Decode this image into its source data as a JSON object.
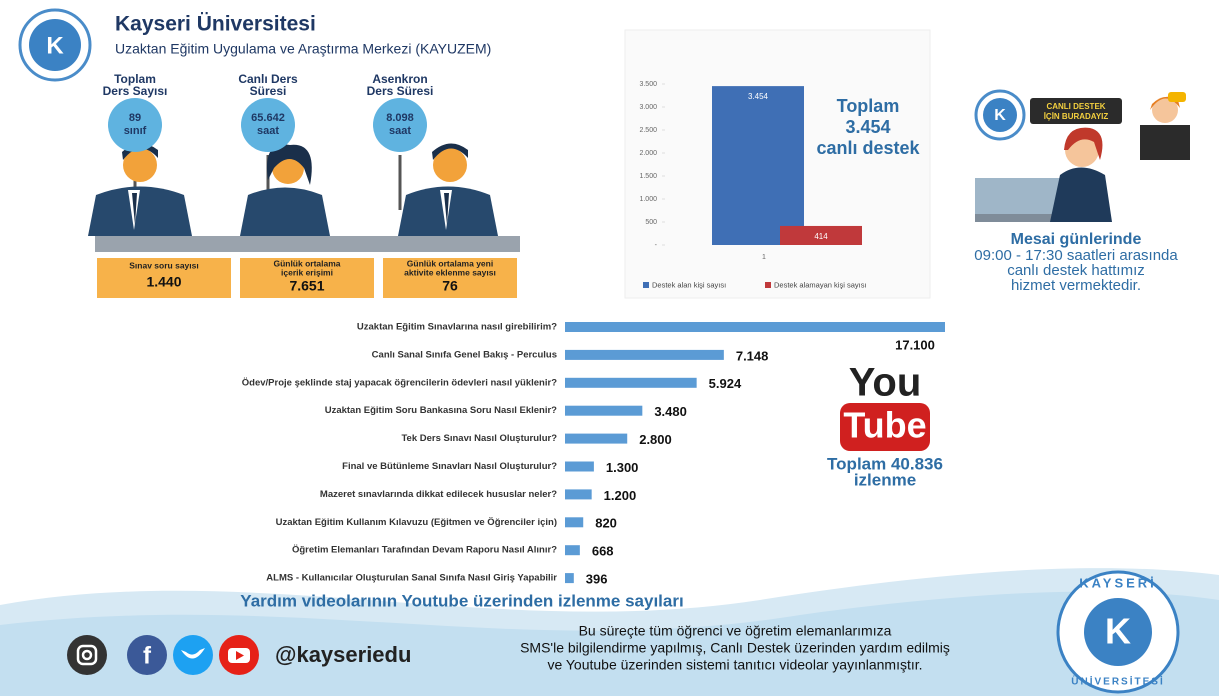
{
  "header": {
    "title": "Kayseri Üniversitesi",
    "subtitle": "Uzaktan Eğitim Uygulama ve Araştırma Merkezi (KAYUZEM)"
  },
  "stats": [
    {
      "label": [
        "Toplam",
        "Ders Sayısı"
      ],
      "value": [
        "89",
        "sınıf"
      ]
    },
    {
      "label": [
        "Canlı Ders",
        "Süresi"
      ],
      "value": [
        "65.642",
        "saat"
      ]
    },
    {
      "label": [
        "Asenkron",
        "Ders Süresi"
      ],
      "value": [
        "8.098",
        "saat"
      ]
    }
  ],
  "boxes": [
    {
      "label": [
        "Sınav soru sayısı"
      ],
      "value": "1.440"
    },
    {
      "label": [
        "Günlük ortalama",
        "içerik erişimi"
      ],
      "value": "7.651"
    },
    {
      "label": [
        "Günlük ortalama yeni",
        "aktivite eklenme sayısı"
      ],
      "value": "76"
    }
  ],
  "chart_data": [
    {
      "type": "bar",
      "categories": [
        "1"
      ],
      "series": [
        {
          "name": "Destek alan kişi sayısı",
          "color": "#3f6fb5",
          "values": [
            3454
          ],
          "value_labels": [
            "3.454"
          ]
        },
        {
          "name": "Destek alamayan kişi sayısı",
          "color": "#c0393b",
          "values": [
            414
          ],
          "value_labels": [
            "414"
          ]
        }
      ],
      "ylim": [
        0,
        3500
      ],
      "yticks": [
        {
          "value": 0,
          "label": "-"
        },
        500,
        {
          "value": 1000,
          "label": "1.000"
        },
        {
          "value": 1500,
          "label": "1.500"
        },
        {
          "value": 2000,
          "label": "2.000"
        },
        {
          "value": 2500,
          "label": "2.500"
        },
        {
          "value": 3000,
          "label": "3.000"
        },
        {
          "value": 3500,
          "label": "3.500"
        }
      ],
      "legend": "bottom",
      "annotation": [
        "Toplam",
        "3.454",
        "canlı destek"
      ]
    },
    {
      "type": "barh",
      "title": "Yardım videolarının Youtube üzerinden izlenme sayıları",
      "categories": [
        "Uzaktan Eğitim Sınavlarına nasıl girebilirim?",
        "Canlı Sanal Sınıfa Genel Bakış - Perculus",
        "Ödev/Proje şeklinde staj yapacak öğrencilerin ödevleri nasıl yüklenir?",
        "Uzaktan Eğitim Soru Bankasına Soru Nasıl Eklenir?",
        "Tek Ders Sınavı Nasıl Oluşturulur?",
        "Final ve Bütünleme Sınavları Nasıl Oluşturulur?",
        "Mazeret sınavlarında dikkat edilecek hususlar neler?",
        "Uzaktan Eğitim Kullanım Kılavuzu (Eğitmen ve Öğrenciler için)",
        "Öğretim Elemanları Tarafından Devam Raporu Nasıl Alınır?",
        "ALMS - Kullanıcılar Oluşturulan Sanal Sınıfa Nasıl Giriş Yapabilir"
      ],
      "values": [
        17100,
        7148,
        5924,
        3480,
        2800,
        1300,
        1200,
        820,
        668,
        396
      ],
      "value_labels": [
        "17.100",
        "7.148",
        "5.924",
        "3.480",
        "2.800",
        "1.300",
        "1.200",
        "820",
        "668",
        "396"
      ],
      "color": "#5b9bd5"
    }
  ],
  "support": {
    "badge": [
      "CANLI DESTEK",
      "İÇİN BURADAYIZ"
    ],
    "lines": [
      "Mesai günlerinde",
      "09:00 - 17:30 saatleri arasında",
      "canlı destek hattımız",
      "hizmet vermektedir."
    ]
  },
  "youtube": {
    "logo_top": "You",
    "logo_bottom": "Tube",
    "total": [
      "Toplam 40.836",
      "izlenme"
    ]
  },
  "footer": {
    "handle": "@kayseriedu",
    "note": [
      "Bu süreçte tüm öğrenci ve öğretim elemanlarımıza",
      "SMS'le bilgilendirme yapılmış, Canlı Destek üzerinden yardım edilmiş",
      "ve Youtube üzerinden sistemi tanıtıcı videolar yayınlanmıştır."
    ]
  },
  "logo": {
    "top": "KAYSERİ",
    "bottom": "ÜNİVERSİTESİ"
  }
}
